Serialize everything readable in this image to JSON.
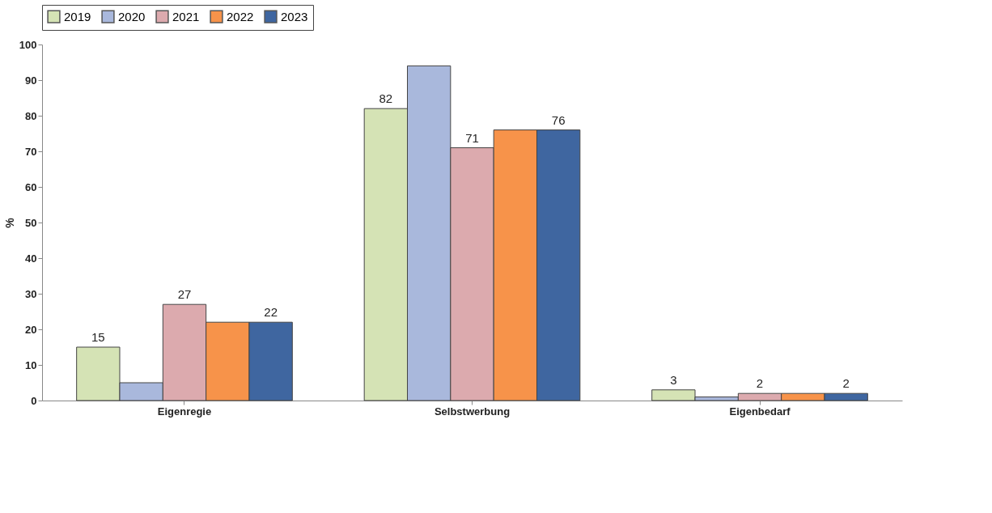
{
  "chart_data": {
    "type": "bar",
    "ylabel": "%",
    "categories": [
      "Eigenregie",
      "Selbstwerbung",
      "Eigenbedarf"
    ],
    "series": [
      {
        "name": "2019",
        "color": "#d5e3b5",
        "values": [
          15,
          82,
          3
        ],
        "value_labels": [
          "15",
          "82",
          "3"
        ]
      },
      {
        "name": "2020",
        "color": "#a9b8dc",
        "values": [
          5,
          94,
          1
        ],
        "value_labels": [
          null,
          null,
          null
        ]
      },
      {
        "name": "2021",
        "color": "#dcaaae",
        "values": [
          27,
          71,
          2
        ],
        "value_labels": [
          "27",
          "71",
          "2"
        ]
      },
      {
        "name": "2022",
        "color": "#f7934a",
        "values": [
          22,
          76,
          2
        ],
        "value_labels": [
          null,
          null,
          null
        ]
      },
      {
        "name": "2023",
        "color": "#3f66a0",
        "values": [
          22,
          76,
          2
        ],
        "value_labels": [
          "22",
          "76",
          "2"
        ]
      }
    ],
    "ylim": [
      0,
      100
    ],
    "yticks": [
      0,
      10,
      20,
      30,
      40,
      50,
      60,
      70,
      80,
      90,
      100
    ],
    "grid": false,
    "legend": "top"
  }
}
